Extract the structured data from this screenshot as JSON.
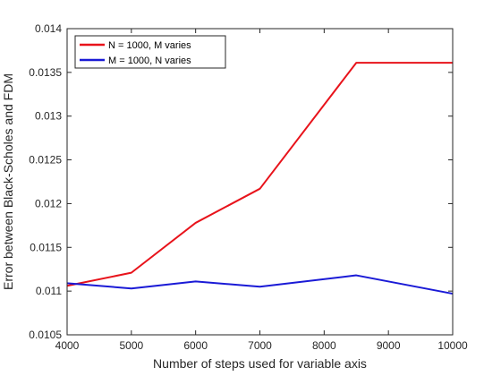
{
  "chart_data": {
    "type": "line",
    "xlabel": "Number of steps used for variable axis",
    "ylabel": "Error between Black-Scholes and FDM",
    "xlim": [
      4000,
      10000
    ],
    "ylim": [
      0.0105,
      0.014
    ],
    "xticks": [
      4000,
      5000,
      6000,
      7000,
      8000,
      9000,
      10000
    ],
    "yticks": [
      0.0105,
      0.011,
      0.0115,
      0.012,
      0.0125,
      0.013,
      0.0135,
      0.014
    ],
    "xtick_labels": [
      "4000",
      "5000",
      "6000",
      "7000",
      "8000",
      "9000",
      "10000"
    ],
    "ytick_labels": [
      "0.0105",
      "0.011",
      "0.0115",
      "0.012",
      "0.0125",
      "0.013",
      "0.0135",
      "0.014"
    ],
    "grid": false,
    "legend_position": "top-left",
    "series": [
      {
        "name": "N = 1000, M varies",
        "color": "#e8131b",
        "x": [
          4000,
          5000,
          6000,
          7000,
          8500,
          10000
        ],
        "y": [
          0.01106,
          0.01121,
          0.01178,
          0.01217,
          0.01361,
          0.01361
        ]
      },
      {
        "name": "M = 1000, N varies",
        "color": "#1a1ad6",
        "x": [
          4000,
          5000,
          6000,
          7000,
          8500,
          10000
        ],
        "y": [
          0.01109,
          0.01103,
          0.01111,
          0.01105,
          0.01118,
          0.01097
        ]
      }
    ]
  }
}
